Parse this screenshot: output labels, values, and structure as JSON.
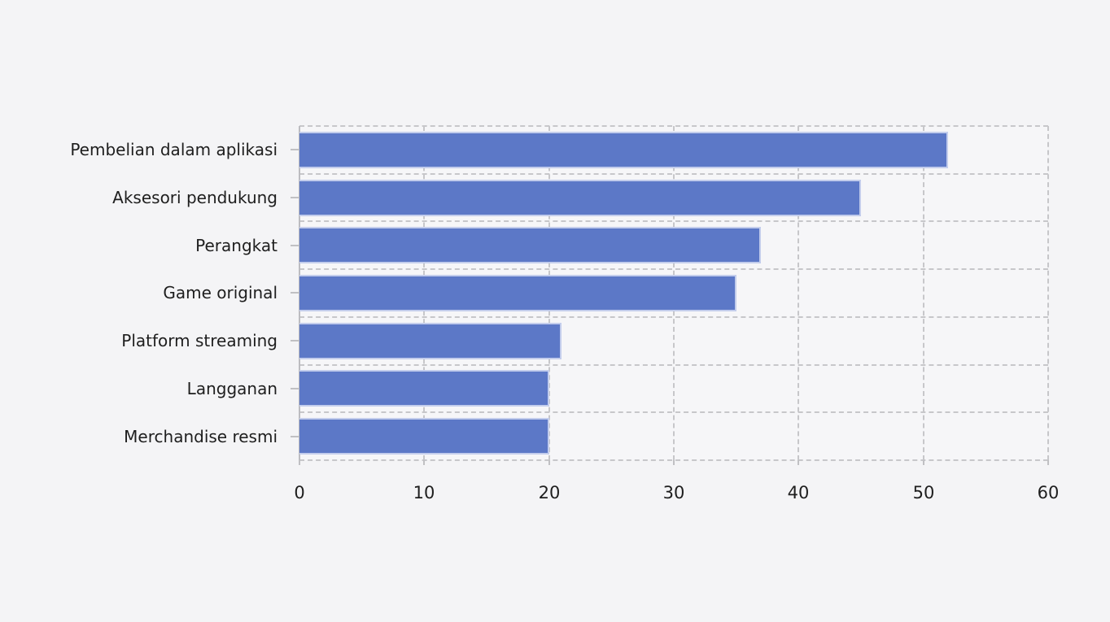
{
  "figure": {
    "background_color": "#f4f4f6",
    "plot_background_color": "#f6f6f8"
  },
  "chart_data": {
    "type": "bar",
    "orientation": "horizontal",
    "title": "",
    "xlabel": "",
    "ylabel": "",
    "categories": [
      "Pembelian dalam aplikasi",
      "Aksesori pendukung",
      "Perangkat",
      "Game original",
      "Platform streaming",
      "Langganan",
      "Merchandise resmi"
    ],
    "values": [
      52,
      45,
      37,
      35,
      21,
      20,
      20
    ],
    "xlim": [
      0,
      60
    ],
    "xticks": [
      0,
      10,
      20,
      30,
      40,
      50,
      60
    ],
    "grid": "dashed, both axes, between-category rows",
    "legend_position": "none",
    "bar_color": "#5c78c7",
    "bar_edge_color": "#c3cdec",
    "grid_color": "#c7c7ca",
    "axis_spine_color": "#bcbcc0",
    "tick_color": "#c0c0c3",
    "text_color": "#1e1e1e"
  }
}
